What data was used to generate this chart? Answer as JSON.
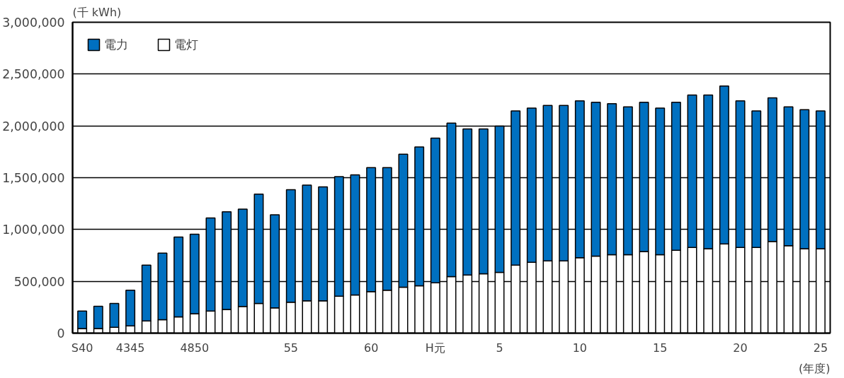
{
  "chart_data": {
    "type": "bar",
    "stacked": true,
    "ylabel": "(千 kWh)",
    "xlabel": "(年度)",
    "categories": [
      "S40",
      null,
      null,
      "4345",
      null,
      null,
      null,
      "4850",
      null,
      null,
      null,
      null,
      null,
      "55",
      null,
      null,
      null,
      null,
      "60",
      null,
      null,
      null,
      "H元",
      null,
      null,
      null,
      "5",
      null,
      null,
      null,
      null,
      "10",
      null,
      null,
      null,
      null,
      "15",
      null,
      null,
      null,
      null,
      "20",
      null,
      null,
      null,
      null,
      "25"
    ],
    "series": [
      {
        "name": "電灯",
        "color": "#ffffff",
        "values": [
          44000,
          44000,
          57000,
          70000,
          117000,
          130000,
          156000,
          187000,
          213000,
          228000,
          257000,
          286000,
          244000,
          298000,
          312000,
          312000,
          356000,
          369000,
          400000,
          415000,
          444000,
          457000,
          485000,
          546000,
          560000,
          573000,
          587000,
          657000,
          684000,
          697000,
          697000,
          727000,
          743000,
          757000,
          757000,
          787000,
          757000,
          800000,
          827000,
          814000,
          860000,
          827000,
          827000,
          884000,
          843000,
          814000,
          814000
        ]
      },
      {
        "name": "電力",
        "color": "#0070c0",
        "values": [
          169000,
          215000,
          229000,
          345000,
          540000,
          643000,
          771000,
          768000,
          898000,
          943000,
          940000,
          1056000,
          898000,
          1086000,
          1116000,
          1100000,
          1155000,
          1158000,
          1197000,
          1182000,
          1283000,
          1340000,
          1397000,
          1481000,
          1411000,
          1398000,
          1411000,
          1487000,
          1487000,
          1501000,
          1501000,
          1514000,
          1484000,
          1457000,
          1427000,
          1440000,
          1414000,
          1427000,
          1471000,
          1484000,
          1524000,
          1414000,
          1317000,
          1387000,
          1341000,
          1343000,
          1330000
        ]
      }
    ],
    "ylim": [
      0,
      3000000
    ],
    "yticks": [
      {
        "value": 0,
        "label": "0"
      },
      {
        "value": 500000,
        "label": "500,000"
      },
      {
        "value": 1000000,
        "label": "1,000,000"
      },
      {
        "value": 1500000,
        "label": "1,500,000"
      },
      {
        "value": 2000000,
        "label": "2,000,000"
      },
      {
        "value": 2500000,
        "label": "2,500,000"
      },
      {
        "value": 3000000,
        "label": "3,000,000"
      }
    ],
    "grid": "y",
    "legend": "top left"
  }
}
